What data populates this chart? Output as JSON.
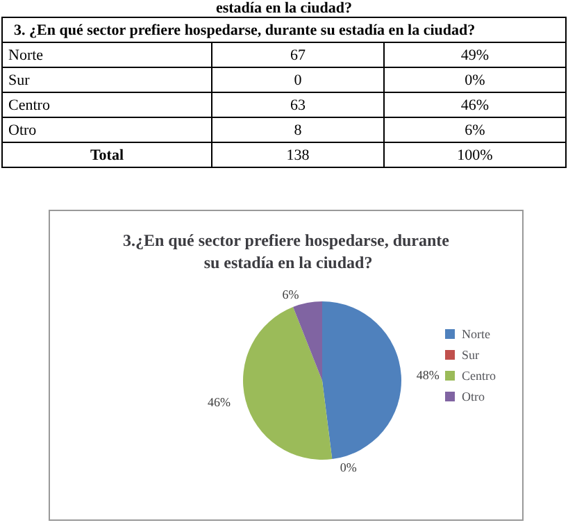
{
  "chart_data": [
    {
      "type": "other",
      "title": "3.  ¿En qué sector prefiere hospedarse, durante su estadía en la ciudad?",
      "annotations": [
        "estadía en la ciudad?"
      ],
      "categories": [
        null,
        null
      ],
      "y_categories": [
        "Norte",
        "Sur",
        "Centro",
        "Otro",
        "Total"
      ],
      "cell_labels": [
        [
          "67",
          "49%"
        ],
        [
          "0",
          "0%"
        ],
        [
          "63",
          "46%"
        ],
        [
          "8",
          "6%"
        ],
        [
          "138",
          "100%"
        ]
      ]
    },
    {
      "type": "pie",
      "title": "3.¿En qué sector prefiere hospedarse, durante su estadía en la ciudad?",
      "categories": [
        "Norte",
        "Sur",
        "Centro",
        "Otro"
      ],
      "values": [
        48,
        0,
        46,
        6
      ],
      "colors": [
        "#4f81bd",
        "#c0504d",
        "#9bbb59",
        "#8064a2"
      ],
      "value_labels": [
        "48%",
        "0%",
        "46%",
        "6%"
      ],
      "legend": "right"
    }
  ]
}
